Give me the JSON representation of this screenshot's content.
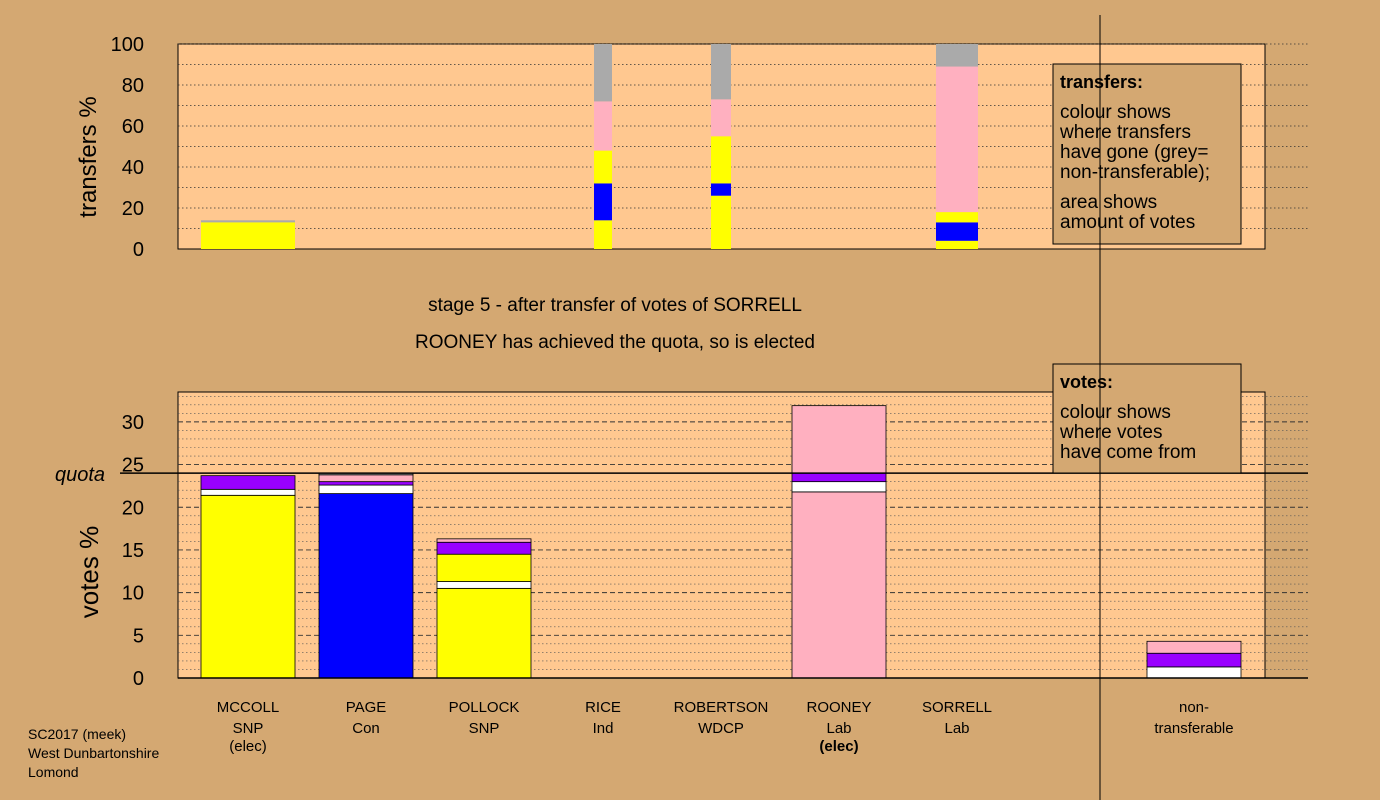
{
  "colors": {
    "background": "#D4A872",
    "plot_bg": "#FFC890",
    "SNP": "#FFFF00",
    "Con": "#0000FF",
    "Lab": "#FFB0C0",
    "other": "#9900FF",
    "white": "#FFFFFF",
    "nontransferable": "#AAAAAA"
  },
  "chart_data": [
    {
      "type": "bar",
      "stacked": true,
      "ylabel": "transfers %",
      "ylim": [
        0,
        100
      ],
      "yticks": [
        "0",
        "20",
        "40",
        "60",
        "80",
        "100"
      ],
      "grid": true,
      "bars": [
        {
          "candidate": "MCCOLL",
          "segments": [
            {
              "color": "SNP",
              "value": 13
            },
            {
              "color": "nontransferable",
              "value": 1
            }
          ]
        },
        {
          "candidate": "RICE",
          "segments": [
            {
              "color": "SNP",
              "value": 14
            },
            {
              "color": "Con",
              "value": 18
            },
            {
              "color": "SNP",
              "value": 16
            },
            {
              "color": "Lab",
              "value": 24
            },
            {
              "color": "nontransferable",
              "value": 28
            }
          ]
        },
        {
          "candidate": "ROBERTSON",
          "segments": [
            {
              "color": "SNP",
              "value": 26
            },
            {
              "color": "Con",
              "value": 6
            },
            {
              "color": "SNP",
              "value": 23
            },
            {
              "color": "Lab",
              "value": 18
            },
            {
              "color": "nontransferable",
              "value": 27
            }
          ]
        },
        {
          "candidate": "SORRELL",
          "segments": [
            {
              "color": "SNP",
              "value": 4
            },
            {
              "color": "Con",
              "value": 9
            },
            {
              "color": "SNP",
              "value": 5
            },
            {
              "color": "Lab",
              "value": 71
            },
            {
              "color": "nontransferable",
              "value": 11
            }
          ]
        }
      ]
    },
    {
      "type": "bar",
      "stacked": true,
      "ylabel": "votes %",
      "ylim": [
        0,
        33
      ],
      "yticks": [
        "0",
        "5",
        "10",
        "15",
        "20",
        "25",
        "30"
      ],
      "quota": 24,
      "quota_label": "quota",
      "grid": true,
      "categories": [
        {
          "name": "MCCOLL",
          "party": "SNP",
          "note": "(elec)",
          "note_bold": false
        },
        {
          "name": "PAGE",
          "party": "Con",
          "note": "",
          "note_bold": false
        },
        {
          "name": "POLLOCK",
          "party": "SNP",
          "note": "",
          "note_bold": false
        },
        {
          "name": "RICE",
          "party": "Ind",
          "note": "",
          "note_bold": false
        },
        {
          "name": "ROBERTSON",
          "party": "WDCP",
          "note": "",
          "note_bold": false
        },
        {
          "name": "ROONEY",
          "party": "Lab",
          "note": "(elec)",
          "note_bold": true
        },
        {
          "name": "SORRELL",
          "party": "Lab",
          "note": "",
          "note_bold": false
        }
      ],
      "nontransferable_label": [
        "non-",
        "transferable"
      ],
      "bars": [
        {
          "candidate": "MCCOLL",
          "segments": [
            {
              "color": "SNP",
              "value": 21.4
            },
            {
              "color": "white",
              "value": 0.7
            },
            {
              "color": "other",
              "value": 1.6
            }
          ]
        },
        {
          "candidate": "PAGE",
          "segments": [
            {
              "color": "Con",
              "value": 21.6
            },
            {
              "color": "white",
              "value": 1.0
            },
            {
              "color": "other",
              "value": 0.4
            },
            {
              "color": "Lab",
              "value": 0.8
            },
            {
              "color": "nontransferable",
              "value": 0.2
            }
          ]
        },
        {
          "candidate": "POLLOCK",
          "segments": [
            {
              "color": "SNP",
              "value": 10.5
            },
            {
              "color": "white",
              "value": 0.8
            },
            {
              "color": "SNP",
              "value": 3.2
            },
            {
              "color": "other",
              "value": 1.4
            },
            {
              "color": "Lab",
              "value": 0.4
            }
          ]
        },
        {
          "candidate": "ROONEY",
          "segments": [
            {
              "color": "Lab",
              "value": 21.8
            },
            {
              "color": "white",
              "value": 1.2
            },
            {
              "color": "other",
              "value": 1.0
            },
            {
              "color": "Lab",
              "value": 7.9
            }
          ]
        },
        {
          "candidate": "non-transferable",
          "segments": [
            {
              "color": "white",
              "value": 1.3
            },
            {
              "color": "other",
              "value": 1.6
            },
            {
              "color": "Lab",
              "value": 1.4
            }
          ]
        }
      ]
    }
  ],
  "stage_text": "stage 5 - after transfer of votes of SORRELL",
  "result_text": "ROONEY has achieved the quota, so is elected",
  "legend_transfers": {
    "title": "transfers:",
    "lines1": [
      "colour shows",
      "where transfers",
      "have gone (grey=",
      "non-transferable);"
    ],
    "lines2": [
      "area shows",
      "amount of votes"
    ]
  },
  "legend_votes": {
    "title": "votes:",
    "lines": [
      "colour shows",
      "where votes",
      "have come from"
    ]
  },
  "footer": [
    "SC2017 (meek)",
    "West Dunbartonshire",
    "Lomond"
  ]
}
